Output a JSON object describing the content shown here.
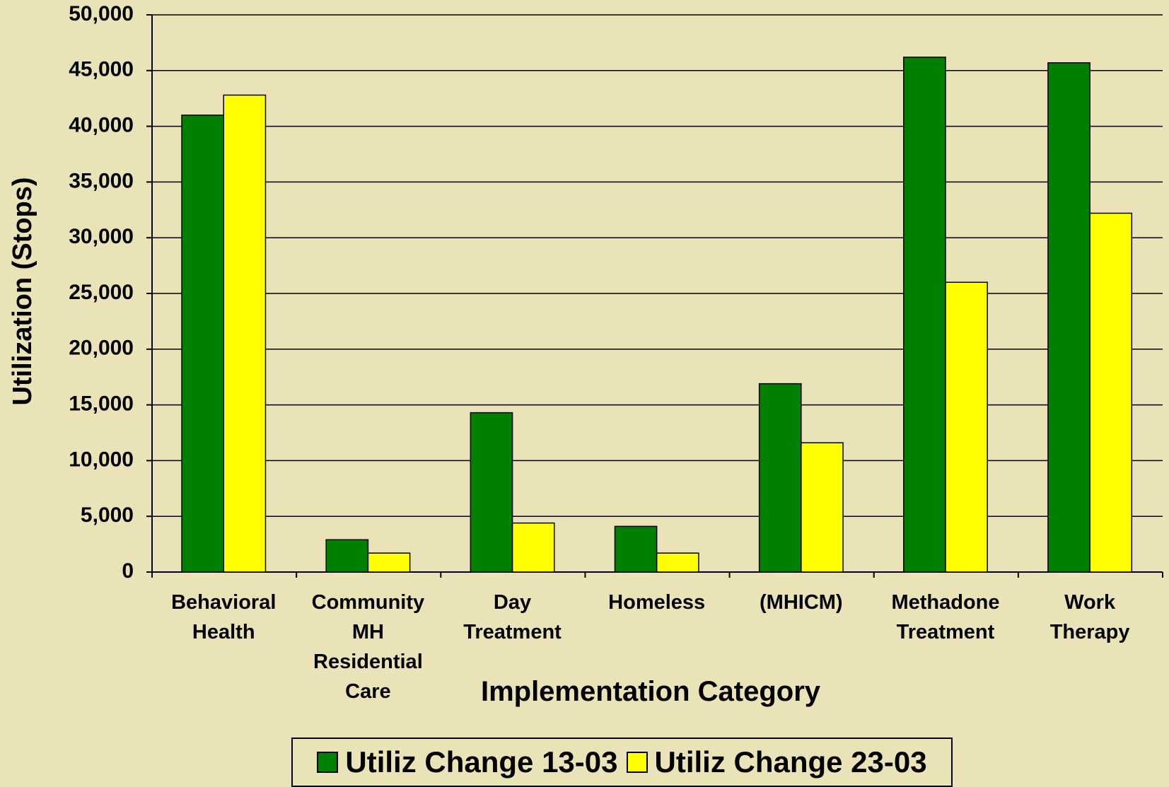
{
  "chart_data": {
    "type": "bar",
    "x_label": "Implementation Category",
    "y_label": "Utilization (Stops)",
    "categories": [
      "Behavioral Health",
      "Community MH Residential Care",
      "Day Treatment",
      "Homeless",
      "(MHICM)",
      "Methadone Treatment",
      "Work Therapy"
    ],
    "series": [
      {
        "name": "Utiliz Change 13-03",
        "color": "#008000",
        "values": [
          41000,
          2900,
          14300,
          4100,
          16900,
          46200,
          45700
        ]
      },
      {
        "name": "Utiliz Change 23-03",
        "color": "#ffff00",
        "values": [
          42800,
          1700,
          4400,
          1700,
          11600,
          26000,
          32200
        ]
      }
    ],
    "ylim": [
      0,
      50000
    ],
    "yticks": [
      0,
      {
        "value": 5000,
        "label": "5,000"
      },
      {
        "value": 10000,
        "label": "10,000"
      },
      {
        "value": 15000,
        "label": "15,000"
      },
      {
        "value": 20000,
        "label": "20,000"
      },
      {
        "value": 25000,
        "label": "25,000"
      },
      {
        "value": 30000,
        "label": "30,000"
      },
      {
        "value": 35000,
        "label": "35,000"
      },
      {
        "value": 40000,
        "label": "40,000"
      },
      {
        "value": 45000,
        "label": "45,000"
      },
      {
        "value": 50000,
        "label": "50,000"
      }
    ],
    "grid": true,
    "legend": "bottom"
  }
}
